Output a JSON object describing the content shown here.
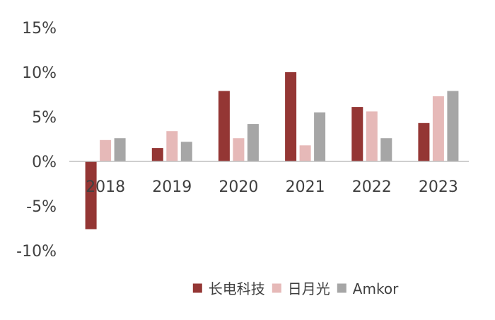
{
  "chart_data": {
    "type": "bar",
    "categories": [
      "2018",
      "2019",
      "2020",
      "2021",
      "2022",
      "2023"
    ],
    "series": [
      {
        "name": "长电科技",
        "color": "#943634",
        "values": [
          -7.6,
          1.5,
          7.9,
          10.0,
          6.1,
          4.3
        ]
      },
      {
        "name": "日月光",
        "color": "#e6b9b8",
        "values": [
          2.4,
          3.4,
          2.6,
          1.8,
          5.6,
          7.3
        ]
      },
      {
        "name": "Amkor",
        "color": "#a6a6a6",
        "values": [
          2.6,
          2.2,
          4.2,
          5.5,
          2.6,
          7.9
        ]
      }
    ],
    "yticks": [
      "15%",
      "10%",
      "5%",
      "0%",
      "-5%",
      "-10%"
    ],
    "ytick_values": [
      15,
      10,
      5,
      0,
      -5,
      -10
    ],
    "ylim": [
      -10,
      15
    ],
    "legend_position": "bottom",
    "grid": false
  }
}
